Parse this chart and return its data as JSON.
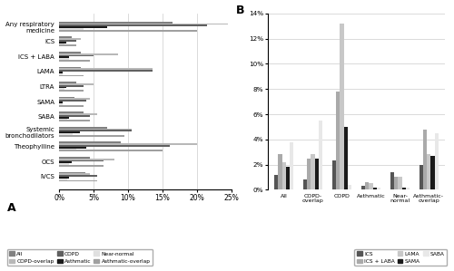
{
  "panel_a": {
    "categories": [
      "Any respiratory\nmedicine",
      "ICS",
      "ICS + LABA",
      "LAMA",
      "LTRA",
      "SAMA",
      "SABA",
      "Systemic\nbronchodilators",
      "Theophylline",
      "OCS",
      "IVCS"
    ],
    "series_order": [
      "All",
      "COPD-overlap",
      "COPD",
      "Asthmatic",
      "Near-normal",
      "Asthmatic-overlap"
    ],
    "series": {
      "All": [
        16.5,
        1.8,
        3.2,
        3.2,
        2.5,
        2.2,
        3.5,
        7.0,
        9.0,
        4.5,
        3.8
      ],
      "COPD-overlap": [
        24.5,
        3.2,
        8.5,
        13.5,
        5.0,
        4.5,
        5.5,
        10.5,
        20.0,
        8.0,
        4.5
      ],
      "COPD": [
        21.5,
        2.5,
        5.0,
        13.5,
        3.5,
        4.0,
        4.5,
        10.5,
        16.0,
        6.5,
        5.5
      ],
      "Asthmatic": [
        7.0,
        1.0,
        1.5,
        0.5,
        1.0,
        0.5,
        1.5,
        3.0,
        4.0,
        1.8,
        1.5
      ],
      "Near-normal": [
        3.5,
        0.8,
        1.5,
        0.5,
        0.8,
        0.5,
        1.2,
        2.0,
        2.5,
        1.5,
        1.2
      ],
      "Asthmatic-overlap": [
        20.0,
        2.5,
        4.5,
        3.5,
        3.5,
        3.5,
        4.5,
        9.5,
        15.0,
        6.5,
        5.5
      ]
    },
    "colors": {
      "All": "#808080",
      "COPD-overlap": "#b8b8b8",
      "COPD": "#606060",
      "Asthmatic": "#1a1a1a",
      "Near-normal": "#e0e0e0",
      "Asthmatic-overlap": "#a0a0a0"
    },
    "bar_height": 0.11,
    "xlim": [
      0,
      25
    ],
    "xticks": [
      0,
      5,
      10,
      15,
      20,
      25
    ],
    "xticklabels": [
      "0%",
      "5%",
      "10%",
      "15%",
      "20%",
      "25%"
    ]
  },
  "panel_b": {
    "groups": [
      "All",
      "COPD-\noverlap",
      "COPD",
      "Asthmatic",
      "Near-\nnormal",
      "Asthmatic-\noverlap"
    ],
    "series_order": [
      "ICS",
      "ICS + LABA",
      "LAMA",
      "SAMA",
      "SABA"
    ],
    "series": {
      "ICS": [
        1.2,
        0.8,
        2.3,
        0.3,
        1.4,
        2.0
      ],
      "ICS + LABA": [
        2.8,
        2.5,
        7.8,
        0.6,
        1.0,
        4.8
      ],
      "LAMA": [
        2.2,
        2.8,
        13.2,
        0.5,
        1.0,
        2.8
      ],
      "SAMA": [
        1.8,
        2.5,
        5.0,
        0.2,
        0.2,
        2.7
      ],
      "SABA": [
        3.8,
        5.5,
        0.4,
        0.2,
        0.2,
        4.5
      ]
    },
    "colors": {
      "ICS": "#555555",
      "ICS + LABA": "#aaaaaa",
      "LAMA": "#c8c8c8",
      "SAMA": "#1a1a1a",
      "SABA": "#e8e8e8"
    },
    "bar_width": 0.13,
    "ylim": [
      0,
      14
    ],
    "yticks": [
      0,
      2,
      4,
      6,
      8,
      10,
      12,
      14
    ],
    "yticklabels": [
      "0%",
      "2%",
      "4%",
      "6%",
      "8%",
      "10%",
      "12%",
      "14%"
    ]
  }
}
